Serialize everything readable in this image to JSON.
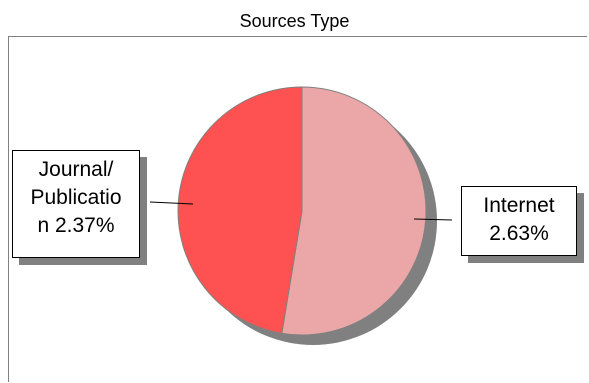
{
  "chart_data": {
    "type": "pie",
    "title": "Sources Type",
    "slices": [
      {
        "label": "Journal/ Publication",
        "label_lines": [
          "Journal/",
          "Publicatio",
          "n 2.37%"
        ],
        "value": 2.37,
        "color": "#fe5151"
      },
      {
        "label": "Internet",
        "label_lines": [
          "Internet",
          "2.63%"
        ],
        "value": 2.63,
        "color": "#eba7a7"
      }
    ],
    "start_angle_deg": 0,
    "legend": "none"
  }
}
